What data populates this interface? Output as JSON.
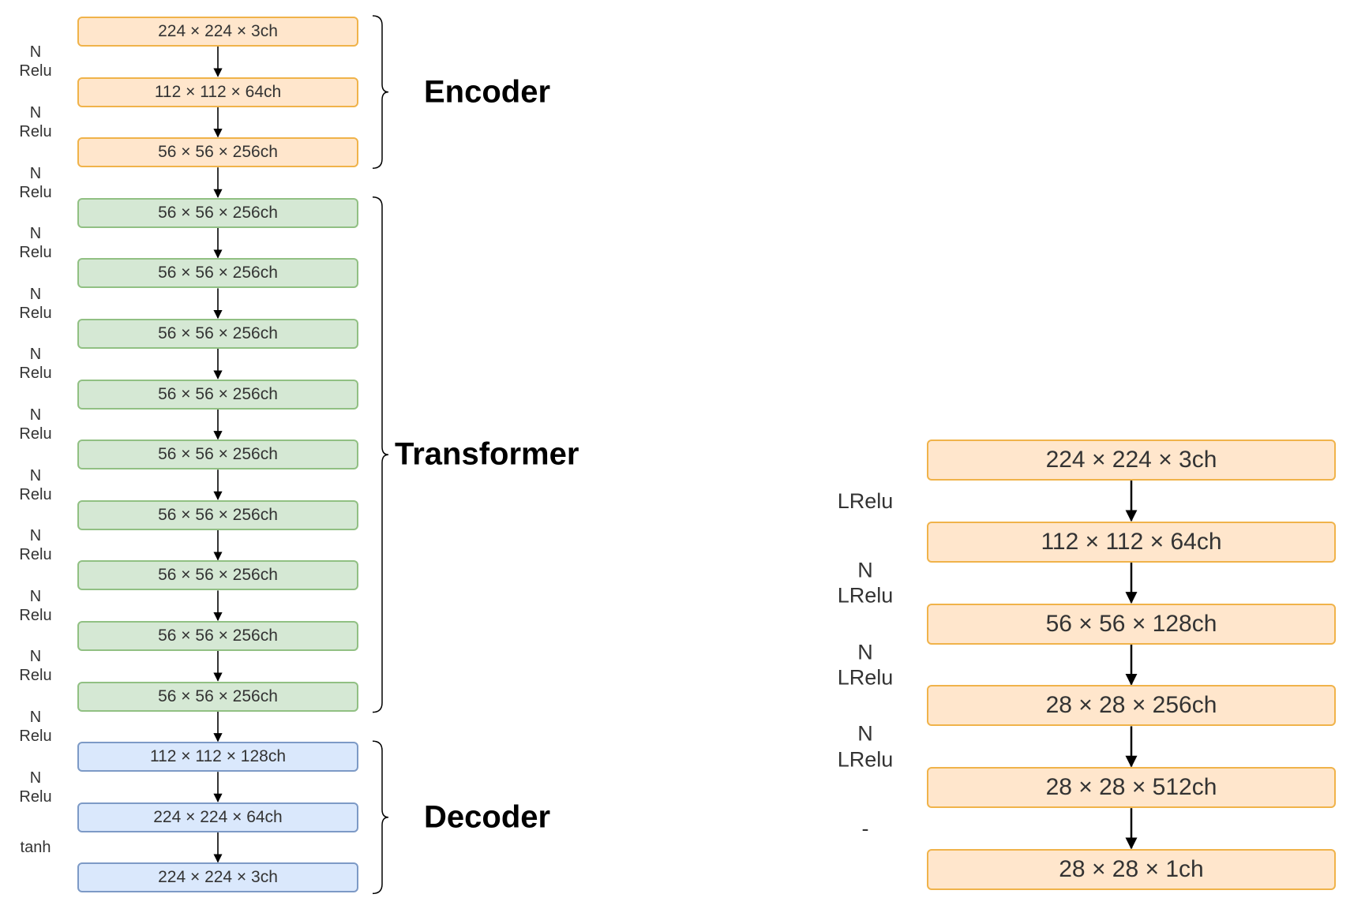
{
  "generator": {
    "groups": [
      {
        "label": "Encoder",
        "layers": [
          {
            "text": "224 × 224 × 3ch",
            "activation": ""
          },
          {
            "text": "112 × 112 × 64ch",
            "activation": "N\nRelu"
          },
          {
            "text": "56 × 56 × 256ch",
            "activation": "N\nRelu"
          }
        ]
      },
      {
        "label": "Transformer",
        "layers": [
          {
            "text": "56 × 56 × 256ch",
            "activation": "N\nRelu"
          },
          {
            "text": "56 × 56 × 256ch",
            "activation": "N\nRelu"
          },
          {
            "text": "56 × 56 × 256ch",
            "activation": "N\nRelu"
          },
          {
            "text": "56 × 56 × 256ch",
            "activation": "N\nRelu"
          },
          {
            "text": "56 × 56 × 256ch",
            "activation": "N\nRelu"
          },
          {
            "text": "56 × 56 × 256ch",
            "activation": "N\nRelu"
          },
          {
            "text": "56 × 56 × 256ch",
            "activation": "N\nRelu"
          },
          {
            "text": "56 × 56 × 256ch",
            "activation": "N\nRelu"
          },
          {
            "text": "56 × 56 × 256ch",
            "activation": "N\nRelu"
          }
        ]
      },
      {
        "label": "Decoder",
        "layers": [
          {
            "text": "112 × 112 × 128ch",
            "activation": "N\nRelu"
          },
          {
            "text": "224 × 224 × 64ch",
            "activation": "N\nRelu"
          },
          {
            "text": "224 × 224 × 3ch",
            "activation": "tanh"
          }
        ]
      }
    ]
  },
  "discriminator": {
    "layers": [
      {
        "text": "224 × 224 × 3ch",
        "activation": ""
      },
      {
        "text": "112 × 112 × 64ch",
        "activation": "LRelu"
      },
      {
        "text": "56 × 56 × 128ch",
        "activation": "N\nLRelu"
      },
      {
        "text": "28 × 28 × 256ch",
        "activation": "N\nLRelu"
      },
      {
        "text": "28 × 28 × 512ch",
        "activation": "N\nLRelu"
      },
      {
        "text": "28 × 28 × 1ch",
        "activation": "-"
      }
    ]
  },
  "colors": {
    "encoder_fill": "#ffe6cc",
    "encoder_border": "#f0b34a",
    "transformer_fill": "#d5e8d4",
    "transformer_border": "#91c083",
    "decoder_fill": "#dae8fc",
    "decoder_border": "#7d9ac6",
    "arrow": "#000000"
  }
}
